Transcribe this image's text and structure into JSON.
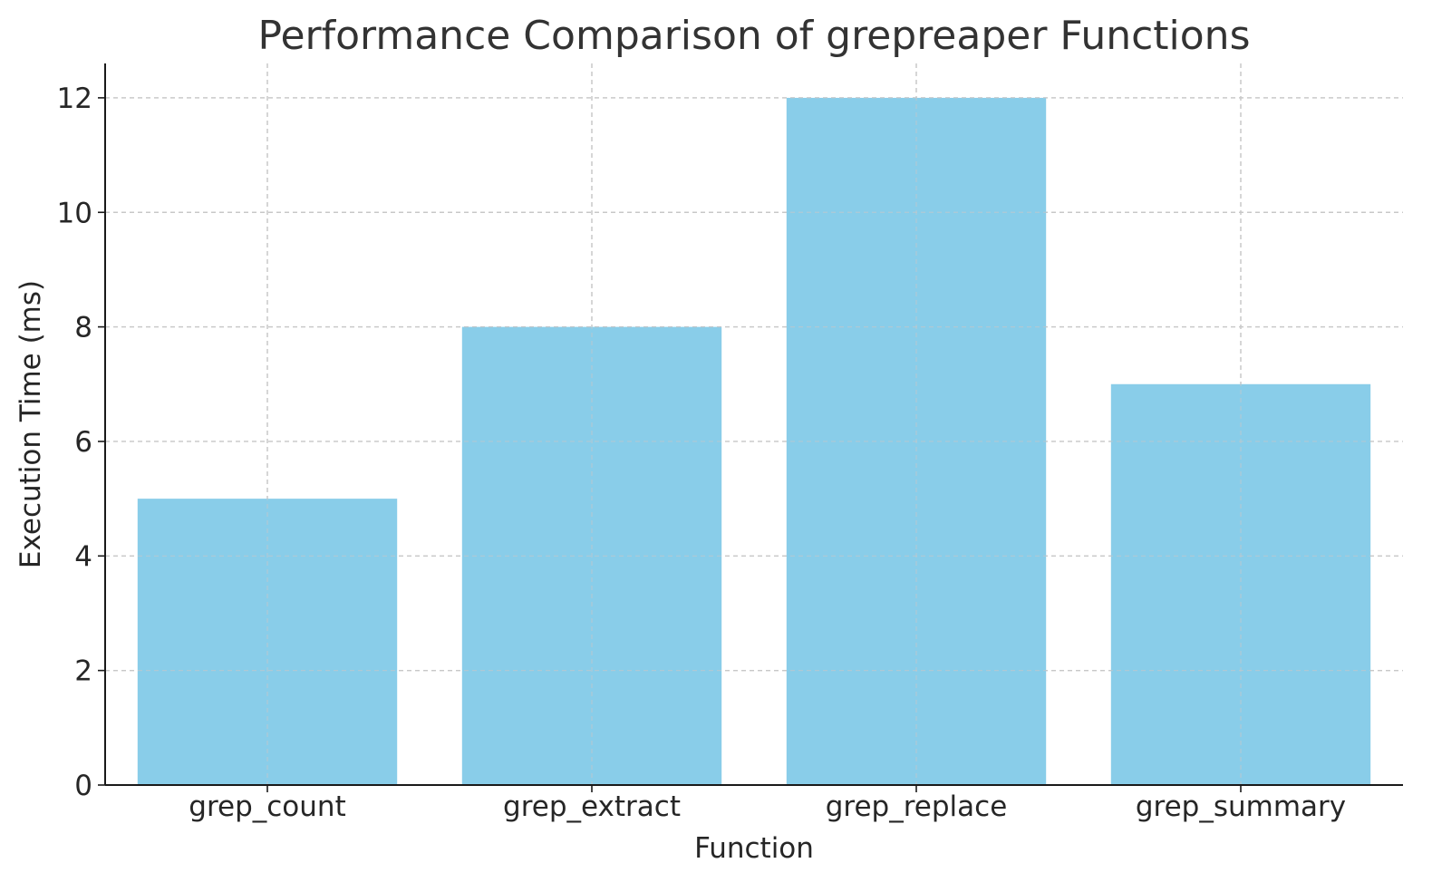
{
  "chart_data": {
    "type": "bar",
    "title": "Performance Comparison of grepreaper Functions",
    "xlabel": "Function",
    "ylabel": "Execution Time (ms)",
    "categories": [
      "grep_count",
      "grep_extract",
      "grep_replace",
      "grep_summary"
    ],
    "values": [
      5,
      8,
      12,
      7
    ],
    "ylim": [
      0,
      12.6
    ],
    "yticks": [
      0,
      2,
      4,
      6,
      8,
      10,
      12
    ],
    "grid": true,
    "grid_style": "dashed",
    "legend": "none",
    "colors": {
      "bar": "#89CDE9",
      "grid": "#c8c8c8",
      "axis": "#1a1a1a",
      "text": "#262626",
      "title": "#333333"
    }
  }
}
